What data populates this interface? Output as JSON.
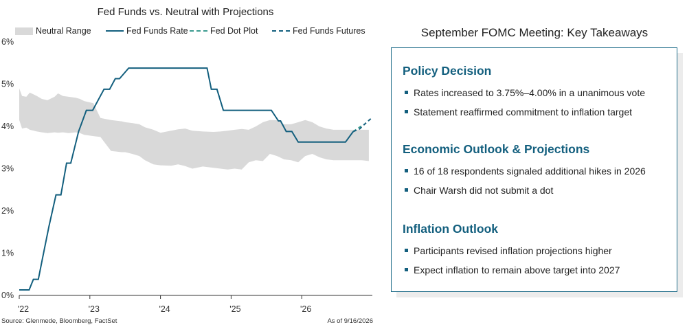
{
  "chart_data": {
    "type": "line",
    "title": "Fed Funds vs. Neutral with Projections",
    "legend": [
      {
        "name": "Neutral Range",
        "kind": "band",
        "color": "#d9d9d9"
      },
      {
        "name": "Fed Funds Rate",
        "kind": "solid",
        "color": "#135f7e"
      },
      {
        "name": "Fed Dot Plot",
        "kind": "dashed",
        "color": "#3a9a8f"
      },
      {
        "name": "Fed Funds Futures",
        "kind": "dashed",
        "color": "#135f7e"
      }
    ],
    "legend_position": "top",
    "x_ticks": [
      "'22",
      "'23",
      "'24",
      "'25",
      "'26"
    ],
    "x_range": [
      2022.0,
      2027.0
    ],
    "y_ticks": [
      "0%",
      "1%",
      "2%",
      "3%",
      "4%",
      "5%",
      "6%"
    ],
    "y_range": [
      0,
      6
    ],
    "grid": false,
    "series": [
      {
        "name": "Fed Funds Rate",
        "step": true,
        "points": [
          [
            2022.0,
            0.13
          ],
          [
            2022.14,
            0.13
          ],
          [
            2022.2,
            0.38
          ],
          [
            2022.27,
            0.38
          ],
          [
            2022.33,
            0.88
          ],
          [
            2022.42,
            1.63
          ],
          [
            2022.52,
            2.38
          ],
          [
            2022.59,
            2.38
          ],
          [
            2022.67,
            3.13
          ],
          [
            2022.73,
            3.13
          ],
          [
            2022.84,
            3.88
          ],
          [
            2022.95,
            4.38
          ],
          [
            2023.04,
            4.38
          ],
          [
            2023.12,
            4.63
          ],
          [
            2023.2,
            4.88
          ],
          [
            2023.28,
            4.88
          ],
          [
            2023.36,
            5.13
          ],
          [
            2023.42,
            5.13
          ],
          [
            2023.55,
            5.38
          ],
          [
            2024.66,
            5.38
          ],
          [
            2024.72,
            4.88
          ],
          [
            2024.8,
            4.88
          ],
          [
            2024.89,
            4.38
          ],
          [
            2025.57,
            4.38
          ],
          [
            2025.67,
            4.13
          ],
          [
            2025.7,
            4.13
          ],
          [
            2025.78,
            3.88
          ],
          [
            2025.86,
            3.88
          ],
          [
            2025.95,
            3.63
          ],
          [
            2026.62,
            3.63
          ],
          [
            2026.73,
            3.88
          ]
        ]
      },
      {
        "name": "Fed Dot Plot",
        "points": [
          [
            2026.73,
            3.88
          ],
          [
            2026.88,
            4.05
          ]
        ]
      },
      {
        "name": "Fed Funds Futures",
        "points": [
          [
            2026.73,
            3.88
          ],
          [
            2026.82,
            3.94
          ],
          [
            2026.92,
            4.1
          ],
          [
            2026.99,
            4.2
          ]
        ]
      }
    ],
    "neutral_range": {
      "x": [
        2022.0,
        2022.04,
        2022.1,
        2022.15,
        2022.25,
        2022.32,
        2022.4,
        2022.5,
        2022.55,
        2022.62,
        2022.7,
        2022.8,
        2022.86,
        2022.92,
        2023.05,
        2023.15,
        2023.3,
        2023.45,
        2023.5,
        2023.6,
        2023.7,
        2023.78,
        2023.9,
        2024.0,
        2024.15,
        2024.25,
        2024.35,
        2024.45,
        2024.6,
        2024.75,
        2024.85,
        2024.95,
        2025.05,
        2025.15,
        2025.25,
        2025.35,
        2025.45,
        2025.55,
        2025.65,
        2025.75,
        2025.85,
        2025.95,
        2026.05,
        2026.15,
        2026.25,
        2026.35,
        2026.45,
        2026.55,
        2026.65,
        2026.75,
        2026.85,
        2026.95
      ],
      "low": [
        4.15,
        3.95,
        3.97,
        3.92,
        3.88,
        3.86,
        3.84,
        3.86,
        3.85,
        3.86,
        3.84,
        3.86,
        3.84,
        3.8,
        3.77,
        3.75,
        3.42,
        3.39,
        3.39,
        3.35,
        3.3,
        3.2,
        3.1,
        3.08,
        3.07,
        3.1,
        3.06,
        3.0,
        3.05,
        3.02,
        3.0,
        2.98,
        3.0,
        2.98,
        3.15,
        3.2,
        3.18,
        3.35,
        3.3,
        3.22,
        3.2,
        3.15,
        3.3,
        3.35,
        3.27,
        3.22,
        3.2,
        3.2,
        3.2,
        3.2,
        3.2,
        3.18
      ],
      "high": [
        4.9,
        4.72,
        4.7,
        4.8,
        4.72,
        4.65,
        4.62,
        4.7,
        4.78,
        4.72,
        4.7,
        4.68,
        4.65,
        4.6,
        4.55,
        4.2,
        4.15,
        4.12,
        4.1,
        4.08,
        4.05,
        3.98,
        3.92,
        3.85,
        3.9,
        3.93,
        3.95,
        3.9,
        3.88,
        3.87,
        3.88,
        3.9,
        3.92,
        3.94,
        3.92,
        4.0,
        4.1,
        4.15,
        4.15,
        4.05,
        4.05,
        4.1,
        4.15,
        4.1,
        4.0,
        3.95,
        3.92,
        3.92,
        3.92,
        3.92,
        3.92,
        3.92
      ]
    },
    "source": "Source: Glenmede, Bloomberg, FactSet",
    "as_of": "As of 9/16/2026"
  },
  "takeaways": {
    "title": "September FOMC Meeting: Key Takeaways",
    "sections": [
      {
        "heading": "Policy Decision",
        "bullets": [
          "Rates increased to 3.75%–4.00% in a unanimous vote",
          "Statement reaffirmed commitment to inflation target"
        ]
      },
      {
        "heading": "Economic Outlook & Projections",
        "bullets": [
          "16 of 18 respondents signaled additional hikes in 2026",
          "Chair Warsh did not submit a dot"
        ]
      },
      {
        "heading": "Inflation Outlook",
        "bullets": [
          "Participants revised inflation projections higher",
          "Expect inflation to remain above target into 2027"
        ]
      }
    ]
  },
  "colors": {
    "accent": "#135f7e",
    "dot_plot": "#3a9a8f",
    "band": "#d9d9d9"
  }
}
